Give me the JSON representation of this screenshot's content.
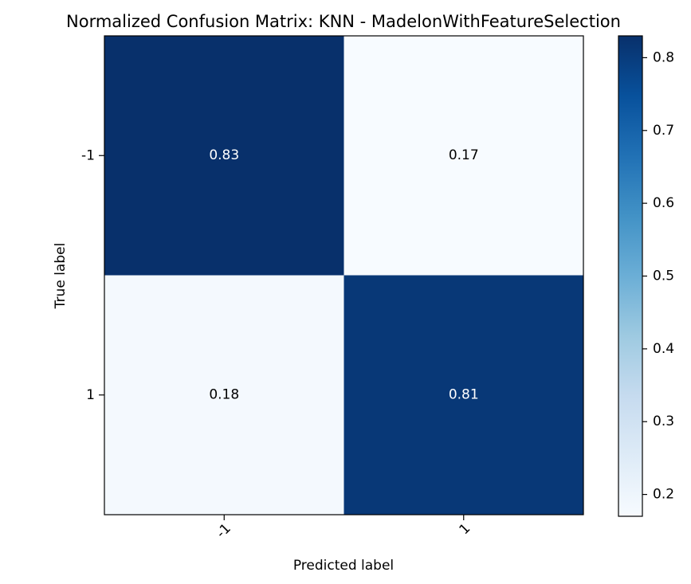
{
  "chart_data": {
    "type": "heatmap",
    "title": "Normalized Confusion Matrix: KNN - MadelonWithFeatureSelection",
    "xlabel": "Predicted label",
    "ylabel": "True label",
    "x_categories": [
      "-1",
      "1"
    ],
    "y_categories": [
      "-1",
      "1"
    ],
    "values": [
      [
        0.83,
        0.17
      ],
      [
        0.18,
        0.81
      ]
    ],
    "value_labels": [
      [
        "0.83",
        "0.17"
      ],
      [
        "0.18",
        "0.81"
      ]
    ],
    "colormap": "Blues",
    "color_range": [
      0.17,
      0.83
    ],
    "colorbar": {
      "ticks": [
        0.2,
        0.3,
        0.4,
        0.5,
        0.6,
        0.7,
        0.8
      ],
      "tick_labels": [
        "0.2",
        "0.3",
        "0.4",
        "0.5",
        "0.6",
        "0.7",
        "0.8"
      ],
      "range": [
        0.17,
        0.83
      ]
    },
    "colors": {
      "high": "#08306b",
      "low": "#f7fbff",
      "text_on_dark": "#ffffff",
      "text_on_light": "#000000"
    }
  }
}
